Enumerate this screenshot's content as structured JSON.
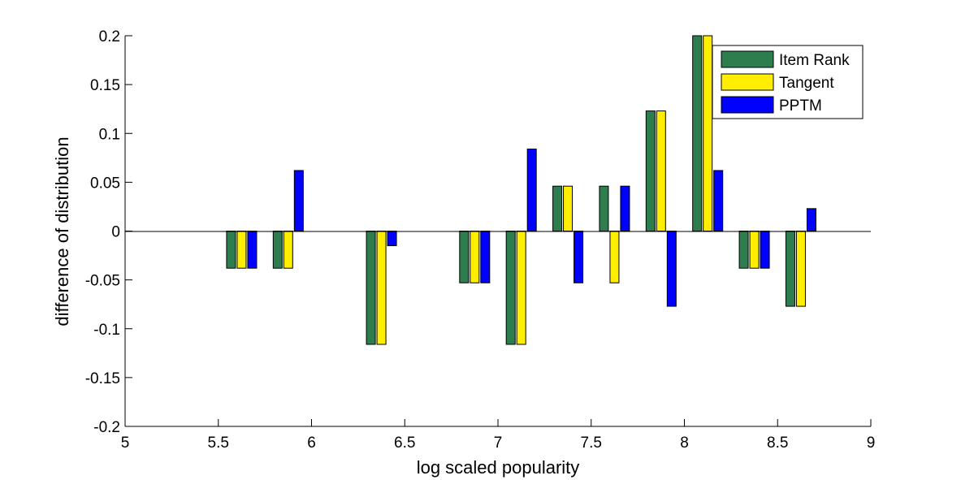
{
  "chart_data": {
    "type": "bar",
    "xlabel": "log scaled popularity",
    "ylabel": "difference of distribution",
    "xlim": [
      5,
      9
    ],
    "ylim": [
      -0.2,
      0.2
    ],
    "xticks": [
      "5",
      "5.5",
      "6",
      "6.5",
      "7",
      "7.5",
      "8",
      "8.5",
      "9"
    ],
    "yticks": [
      "-0.2",
      "-0.15",
      "-0.1",
      "-0.05",
      "0",
      "0.05",
      "0.1",
      "0.15",
      "0.2"
    ],
    "grid": false,
    "legend_position": "top-right",
    "x": [
      5.625,
      5.875,
      6.375,
      6.875,
      7.125,
      7.375,
      7.625,
      7.875,
      8.125,
      8.375,
      8.625
    ],
    "series": [
      {
        "name": "Item Rank",
        "color": "#2e7d4f",
        "values": [
          -0.038,
          -0.038,
          -0.116,
          -0.053,
          -0.116,
          0.046,
          0.046,
          0.123,
          0.2,
          -0.038,
          -0.077
        ]
      },
      {
        "name": "Tangent",
        "color": "#ffee00",
        "values": [
          -0.038,
          -0.038,
          -0.116,
          -0.053,
          -0.116,
          0.046,
          -0.053,
          0.123,
          0.2,
          -0.038,
          -0.077
        ]
      },
      {
        "name": "PPTM",
        "color": "#0000ff",
        "values": [
          -0.038,
          0.062,
          -0.015,
          -0.053,
          0.084,
          -0.053,
          0.046,
          -0.077,
          0.062,
          -0.038,
          0.023
        ]
      }
    ]
  }
}
